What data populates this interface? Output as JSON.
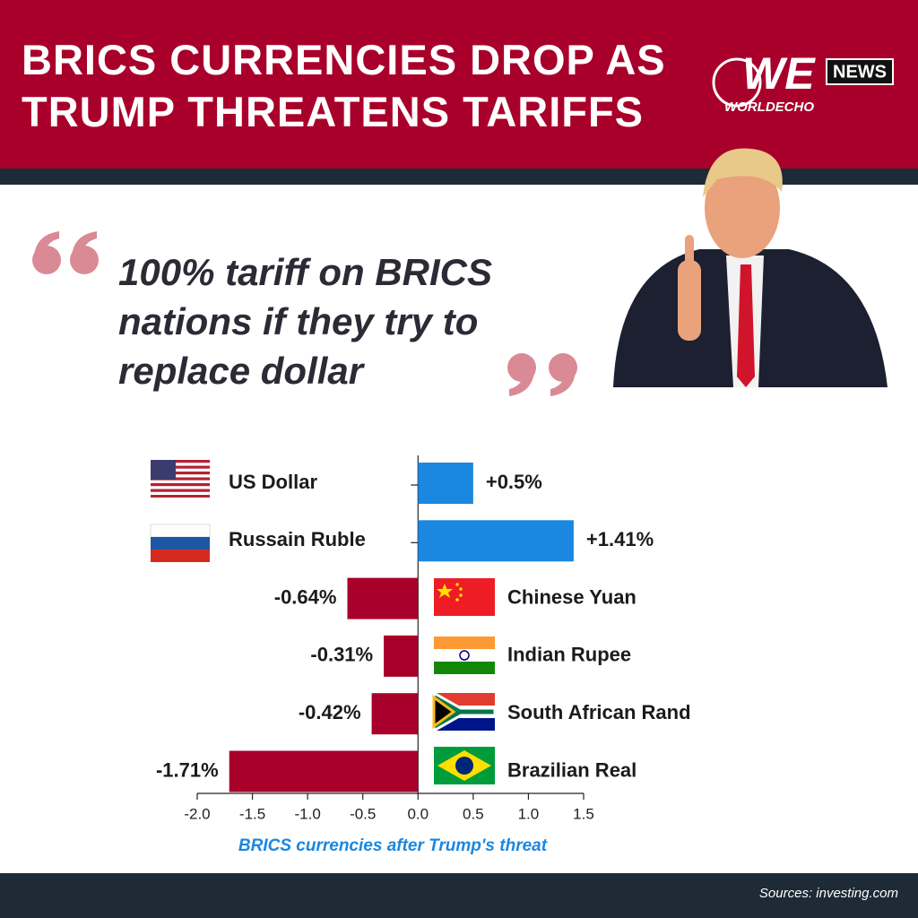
{
  "header": {
    "title": "BRICS CURRENCIES DROP AS TRUMP THREATENS TARIFFS",
    "logo_mark": "WE",
    "logo_badge": "NEWS",
    "logo_name": "WORLDECHO"
  },
  "quote": "100% tariff on BRICS nations if they try to replace dollar",
  "chart_data": {
    "type": "bar",
    "orientation": "horizontal",
    "categories": [
      "US Dollar",
      "Russain Ruble",
      "Chinese Yuan",
      "Indian Rupee",
      "South African Rand",
      "Brazilian Real"
    ],
    "values": [
      0.5,
      1.41,
      -0.64,
      -0.31,
      -0.42,
      -1.71
    ],
    "value_labels": [
      "+0.5%",
      "+1.41%",
      "-0.64%",
      "-0.31%",
      "-0.42%",
      "-1.71%"
    ],
    "colors": [
      "#1a87e0",
      "#1a87e0",
      "#a8002a",
      "#a8002a",
      "#a8002a",
      "#a8002a"
    ],
    "xlim": [
      -2.0,
      1.5
    ],
    "xticks": [
      {
        "value": -2.0,
        "label": "-2.0"
      },
      -1.5,
      {
        "value": -1.0,
        "label": "-1.0"
      },
      -0.5,
      {
        "value": 0.0,
        "label": "0.0"
      },
      0.5,
      {
        "value": 1.0,
        "label": "1.0"
      },
      1.5
    ],
    "xlabel": "BRICS currencies after Trump's threat"
  },
  "footer": {
    "source": "Sources: investing.com"
  }
}
